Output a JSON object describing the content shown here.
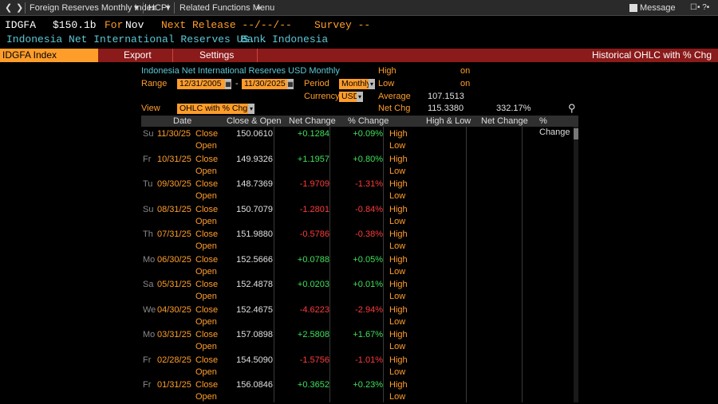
{
  "toolbar": {
    "back": "❮",
    "forward": "❯",
    "tab1": "Foreign Reserves Monthly Index",
    "tab1_caret": "▾",
    "tab2": "HCPI",
    "tab2_caret": "▾",
    "tab3": "Related Functions Menu",
    "tab3_caret": "»",
    "message": "Message",
    "icons_right": "☐•  ?•"
  },
  "header": {
    "ticker": "IDGFA",
    "price": "$150.1b",
    "for_label": "For",
    "for_value": "Nov",
    "next_release": "Next Release --/--/--",
    "survey": "Survey --",
    "description": "Indonesia Net International Reserves US...",
    "source": "Bank Indonesia"
  },
  "function_bar": {
    "index_tab": "IDGFA Index",
    "export": "Export",
    "settings": "Settings",
    "title": "Historical OHLC with % Chg"
  },
  "controls": {
    "series_title": "Indonesia Net International Reserves USD Monthly",
    "range_label": "Range",
    "range_start": "12/31/2005",
    "range_dash": "-",
    "range_end": "11/30/2025",
    "period_label": "Period",
    "period_value": "Monthly",
    "currency_label": "Currency",
    "currency_value": "USD",
    "view_label": "View",
    "view_value": "OHLC with % Chg",
    "high_label": "High",
    "high_on": "on",
    "low_label": "Low",
    "low_on": "on",
    "average_label": "Average",
    "average_value": "107.1513",
    "netchg_label": "Net Chg",
    "netchg_value": "115.3380",
    "netchg_pct": "332.17%"
  },
  "table": {
    "headers": {
      "date": "Date",
      "close_open": "Close & Open",
      "net_change": "Net Change",
      "pct_change": "% Change",
      "high_low": "High & Low",
      "net_change2": "Net Change",
      "pct_change2": "% Change"
    },
    "close_label": "Close",
    "open_label": "Open",
    "high_label": "High",
    "low_label": "Low",
    "rows": [
      {
        "dow": "Su",
        "date": "11/30/25",
        "close": "150.0610",
        "net": "+0.1284",
        "pct": "+0.09%",
        "sign": "pos"
      },
      {
        "dow": "Fr",
        "date": "10/31/25",
        "close": "149.9326",
        "net": "+1.1957",
        "pct": "+0.80%",
        "sign": "pos"
      },
      {
        "dow": "Tu",
        "date": "09/30/25",
        "close": "148.7369",
        "net": "-1.9709",
        "pct": "-1.31%",
        "sign": "neg"
      },
      {
        "dow": "Su",
        "date": "08/31/25",
        "close": "150.7079",
        "net": "-1.2801",
        "pct": "-0.84%",
        "sign": "neg"
      },
      {
        "dow": "Th",
        "date": "07/31/25",
        "close": "151.9880",
        "net": "-0.5786",
        "pct": "-0.38%",
        "sign": "neg"
      },
      {
        "dow": "Mo",
        "date": "06/30/25",
        "close": "152.5666",
        "net": "+0.0788",
        "pct": "+0.05%",
        "sign": "pos"
      },
      {
        "dow": "Sa",
        "date": "05/31/25",
        "close": "152.4878",
        "net": "+0.0203",
        "pct": "+0.01%",
        "sign": "pos"
      },
      {
        "dow": "We",
        "date": "04/30/25",
        "close": "152.4675",
        "net": "-4.6223",
        "pct": "-2.94%",
        "sign": "neg"
      },
      {
        "dow": "Mo",
        "date": "03/31/25",
        "close": "157.0898",
        "net": "+2.5808",
        "pct": "+1.67%",
        "sign": "pos"
      },
      {
        "dow": "Fr",
        "date": "02/28/25",
        "close": "154.5090",
        "net": "-1.5756",
        "pct": "-1.01%",
        "sign": "neg"
      },
      {
        "dow": "Fr",
        "date": "01/31/25",
        "close": "156.0846",
        "net": "+0.3652",
        "pct": "+0.23%",
        "sign": "pos"
      }
    ]
  },
  "colors": {
    "amber": "#ff9d2b",
    "cyan": "#5cc8d6",
    "positive": "#3fe05a",
    "negative": "#ff3b3b",
    "function_bar": "#8b1a1a"
  }
}
